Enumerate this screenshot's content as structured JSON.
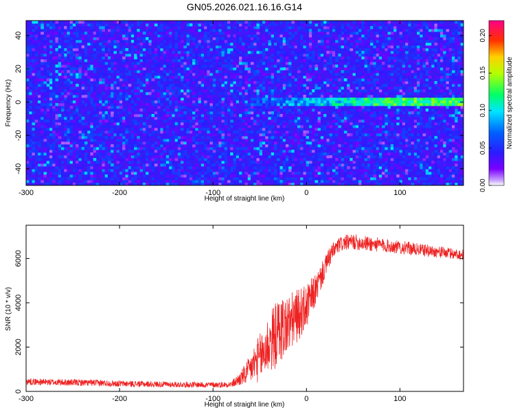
{
  "title": "GN05.2026.021.16.16.G14",
  "chart_data": [
    {
      "type": "heatmap",
      "title": "GN05.2026.021.16.16.G14",
      "xlabel": "Height of straight line (km)",
      "ylabel": "Frequency (Hz)",
      "xlim": [
        -300,
        168
      ],
      "ylim": [
        -50,
        49
      ],
      "xticks": [
        -300,
        -200,
        -100,
        0,
        100
      ],
      "yticks": [
        -40,
        -20,
        0,
        20,
        40
      ],
      "grid": false,
      "colorbar": {
        "label": "Normalized spectral amplitude",
        "range": [
          0,
          0.22
        ],
        "ticks": [
          0.0,
          0.05,
          0.1,
          0.15,
          0.2
        ],
        "tick_labels": [
          "0.00",
          "0.05",
          "0.10",
          "0.15",
          "0.20"
        ],
        "colormap": "rainbow (violet → blue → cyan → green → yellow → red → magenta)"
      },
      "features": [
        {
          "description": "Noise field of normalized amplitude mostly 0.03–0.08 across all frequencies"
        },
        {
          "description": "Coherent ridge near 0 Hz from about -50 km to 168 km, amplitude rising to about 0.10–0.15 above 0 km"
        }
      ]
    },
    {
      "type": "line",
      "xlabel": "Height of straight line (km)",
      "ylabel": "SNR (10 * v/v)",
      "xlim": [
        -300,
        168
      ],
      "ylim": [
        0,
        7500
      ],
      "xticks": [
        -300,
        -200,
        -100,
        0,
        100
      ],
      "yticks": [
        0,
        2000,
        4000,
        6000
      ],
      "grid": false,
      "series": [
        {
          "color": "#ee2222",
          "x": [
            -300,
            -280,
            -250,
            -220,
            -200,
            -170,
            -140,
            -110,
            -90,
            -80,
            -70,
            -62,
            -55,
            -50,
            -45,
            -40,
            -35,
            -30,
            -25,
            -20,
            -15,
            -10,
            -5,
            0,
            5,
            10,
            15,
            20,
            25,
            30,
            35,
            40,
            50,
            60,
            70,
            80,
            90,
            100,
            110,
            120,
            130,
            140,
            150,
            160,
            168
          ],
          "y": [
            450,
            420,
            400,
            380,
            350,
            330,
            310,
            300,
            300,
            320,
            600,
            900,
            1300,
            1500,
            1800,
            2200,
            2400,
            2700,
            2900,
            3000,
            3200,
            3400,
            3600,
            3800,
            4200,
            4600,
            5100,
            5600,
            6100,
            6400,
            6600,
            6700,
            6750,
            6700,
            6650,
            6600,
            6550,
            6500,
            6450,
            6400,
            6350,
            6300,
            6250,
            6200,
            6150
          ],
          "noise_amplitude": [
            150,
            150,
            150,
            150,
            140,
            140,
            130,
            130,
            130,
            140,
            350,
            600,
            900,
            1100,
            1300,
            1400,
            1500,
            1500,
            1500,
            1400,
            1300,
            1200,
            1100,
            1000,
            900,
            700,
            600,
            500,
            450,
            400,
            350,
            350,
            350,
            350,
            350,
            320,
            300,
            300,
            300,
            280,
            280,
            260,
            260,
            250,
            250
          ]
        }
      ]
    }
  ]
}
